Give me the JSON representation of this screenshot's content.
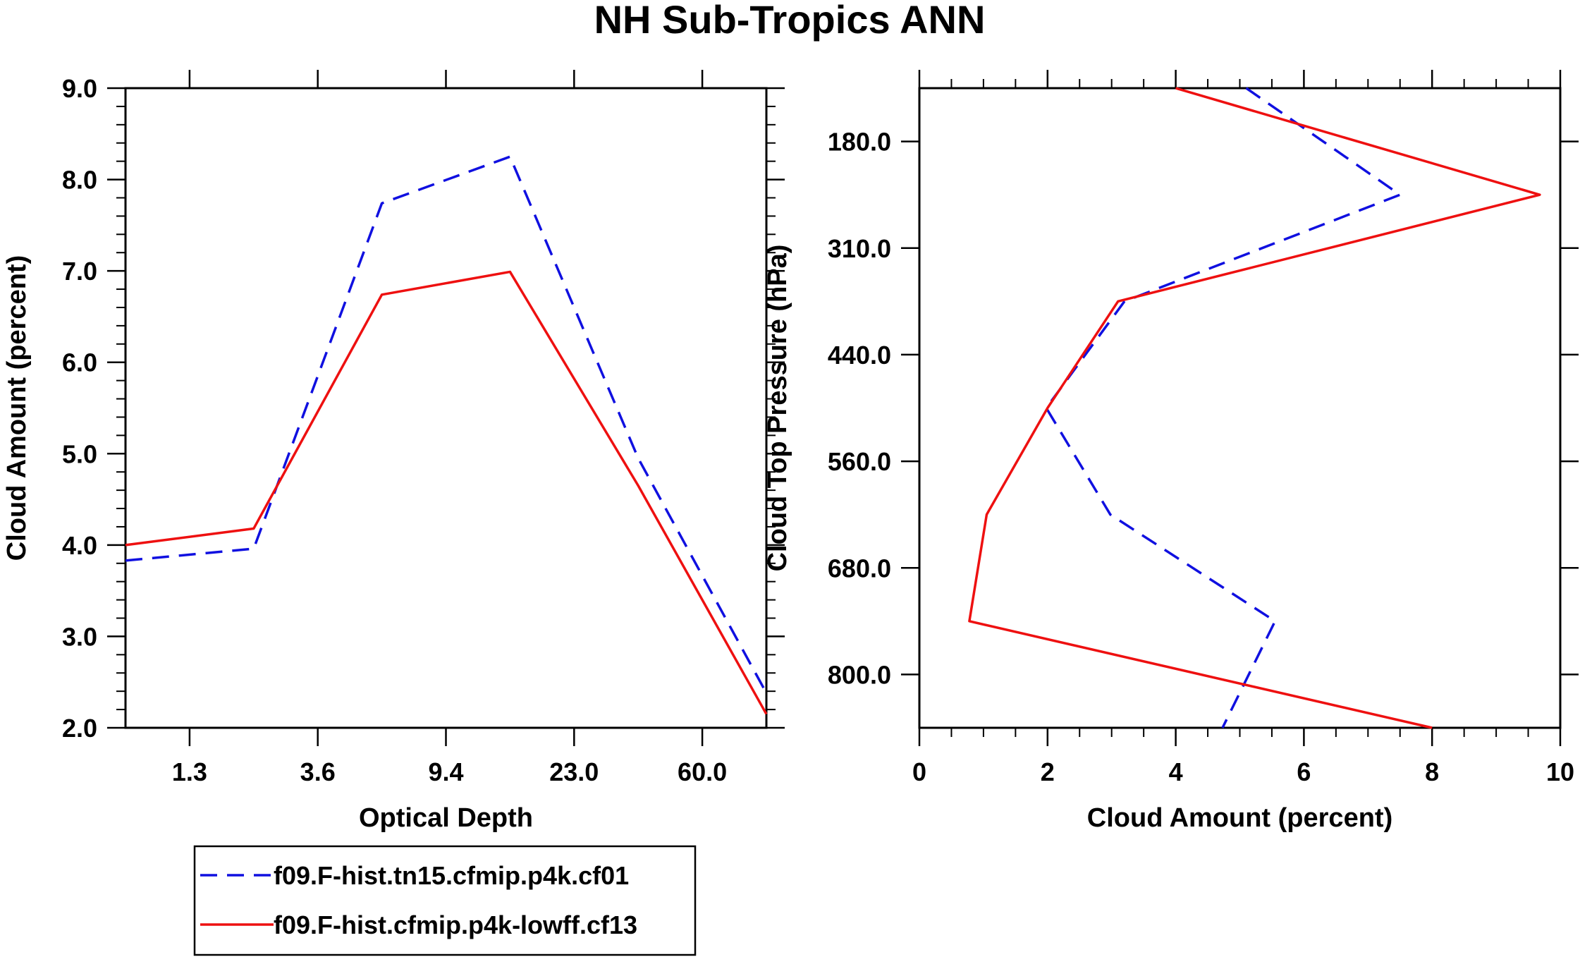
{
  "title": "NH Sub-Tropics ANN",
  "series_styles": [
    {
      "name": "f09.F-hist.tn15.cfmip.p4k.cf01",
      "color": "#1010e0",
      "dash": "dashed"
    },
    {
      "name": "f09.F-hist.cfmip.p4k-lowff.cf13",
      "color": "#ee1010",
      "dash": "solid"
    }
  ],
  "legend": {
    "entries": [
      "f09.F-hist.tn15.cfmip.p4k.cf01",
      "f09.F-hist.cfmip.p4k-lowff.cf13"
    ],
    "placement": "bottom-left"
  },
  "chart_data": [
    {
      "type": "line",
      "title": "NH Sub-Tropics ANN",
      "xlabel": "Optical Depth",
      "ylabel": "Cloud Amount (percent)",
      "xlim": [
        0,
        5
      ],
      "ylim": [
        2.0,
        9.0
      ],
      "x": [
        0,
        1,
        2,
        3,
        4,
        5
      ],
      "xticks": [
        0.5,
        1.5,
        2.5,
        3.5,
        4.5
      ],
      "xtick_labels": [
        "1.3",
        "3.6",
        "9.4",
        "23.0",
        "60.0"
      ],
      "yticks": [
        2.0,
        3.0,
        4.0,
        5.0,
        6.0,
        7.0,
        8.0,
        9.0
      ],
      "ytick_labels": [
        "2.0",
        "3.0",
        "4.0",
        "5.0",
        "6.0",
        "7.0",
        "8.0",
        "9.0"
      ],
      "series": [
        {
          "name": "f09.F-hist.tn15.cfmip.p4k.cf01",
          "values": [
            3.83,
            3.96,
            7.74,
            8.25,
            4.95,
            2.38
          ]
        },
        {
          "name": "f09.F-hist.cfmip.p4k-lowff.cf13",
          "values": [
            4.0,
            4.18,
            6.74,
            6.99,
            4.65,
            2.15
          ]
        }
      ]
    },
    {
      "type": "line",
      "xlabel": "Cloud Amount (percent)",
      "ylabel": "Cloud Top Pressure (hPa)",
      "xlim": [
        0,
        10
      ],
      "ylim": [
        0,
        6
      ],
      "y": [
        0,
        1,
        2,
        3,
        4,
        5,
        6
      ],
      "xticks": [
        0,
        2,
        4,
        6,
        8,
        10
      ],
      "xtick_labels": [
        "0",
        "2",
        "4",
        "6",
        "8",
        "10"
      ],
      "yticks": [
        0.5,
        1.5,
        2.5,
        3.5,
        4.5,
        5.5
      ],
      "ytick_labels": [
        "180.0",
        "310.0",
        "440.0",
        "560.0",
        "680.0",
        "800.0"
      ],
      "series": [
        {
          "name": "f09.F-hist.tn15.cfmip.p4k.cf01",
          "values": [
            5.1,
            7.5,
            3.2,
            1.98,
            2.98,
            5.55,
            4.73
          ]
        },
        {
          "name": "f09.F-hist.cfmip.p4k-lowff.cf13",
          "values": [
            4.0,
            9.68,
            3.1,
            2.0,
            1.05,
            0.78,
            8.0
          ]
        }
      ]
    }
  ]
}
